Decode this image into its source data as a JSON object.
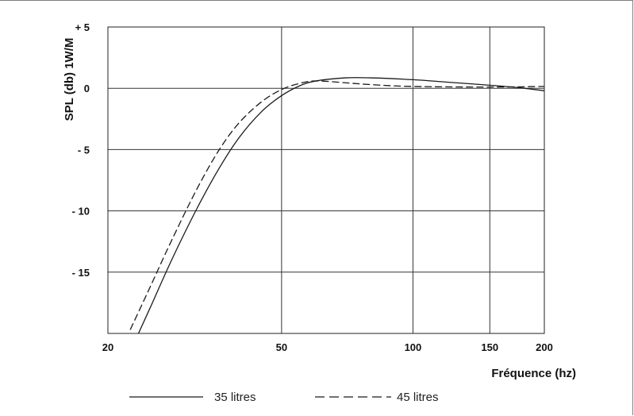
{
  "chart_data": {
    "type": "line",
    "title": "",
    "xlabel": "Fréquence (hz)",
    "ylabel": "SPL (db) 1W/M",
    "x_scale": "log",
    "xlim": [
      20,
      200
    ],
    "ylim": [
      -20,
      5
    ],
    "x_ticks": [
      20,
      50,
      100,
      150,
      200
    ],
    "x_tick_labels": [
      "20",
      "50",
      "100",
      "150",
      "200"
    ],
    "y_ticks": [
      5,
      0,
      -5,
      -10,
      -15
    ],
    "y_tick_labels": [
      "+ 5",
      "0",
      "- 5",
      "- 10",
      "- 15"
    ],
    "grid": true,
    "legend_position": "bottom",
    "series": [
      {
        "name": "35 litres",
        "style": "solid",
        "color": "#1a1a1a",
        "points": [
          [
            23.5,
            -20
          ],
          [
            25,
            -17.9
          ],
          [
            28,
            -14.0
          ],
          [
            32,
            -9.8
          ],
          [
            36,
            -6.5
          ],
          [
            40,
            -4.0
          ],
          [
            45,
            -1.9
          ],
          [
            50,
            -0.6
          ],
          [
            55,
            0.2
          ],
          [
            60,
            0.6
          ],
          [
            70,
            0.85
          ],
          [
            80,
            0.85
          ],
          [
            100,
            0.7
          ],
          [
            120,
            0.5
          ],
          [
            150,
            0.25
          ],
          [
            175,
            0.05
          ],
          [
            200,
            -0.2
          ]
        ]
      },
      {
        "name": "45 litres",
        "style": "dashed",
        "color": "#1a1a1a",
        "points": [
          [
            22.5,
            -19.7
          ],
          [
            25,
            -16.2
          ],
          [
            28,
            -12.4
          ],
          [
            32,
            -8.2
          ],
          [
            36,
            -5.0
          ],
          [
            40,
            -2.8
          ],
          [
            45,
            -1.1
          ],
          [
            50,
            -0.1
          ],
          [
            55,
            0.4
          ],
          [
            60,
            0.6
          ],
          [
            70,
            0.45
          ],
          [
            80,
            0.3
          ],
          [
            100,
            0.15
          ],
          [
            150,
            0.1
          ],
          [
            200,
            0.15
          ]
        ]
      }
    ]
  }
}
